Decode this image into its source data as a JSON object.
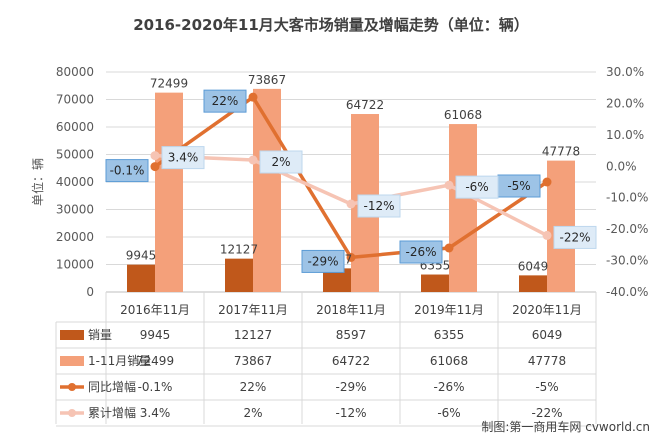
{
  "chart_data": {
    "type": "bar",
    "title": "2016-2020年11月大客市场销量及增幅走势（单位：辆）",
    "ylabel": "单位：辆",
    "ylim": [
      0,
      80000
    ],
    "y2lim": [
      -40,
      30
    ],
    "yticks": [
      "0",
      "10000",
      "20000",
      "30000",
      "40000",
      "50000",
      "60000",
      "70000",
      "80000"
    ],
    "y2ticks": [
      "-40.0%",
      "-30.0%",
      "-20.0%",
      "-10.0%",
      "0.0%",
      "10.0%",
      "20.0%",
      "30.0%"
    ],
    "categories": [
      "2016年11月",
      "2017年11月",
      "2018年11月",
      "2019年11月",
      "2020年11月"
    ],
    "series": [
      {
        "name": "销量",
        "type": "bar",
        "axis": "left",
        "color": "#C0581B",
        "values": [
          9945,
          12127,
          8597,
          6355,
          6049
        ],
        "labels": [
          "9945",
          "12127",
          "8597",
          "6355",
          "6049"
        ]
      },
      {
        "name": "1-11月销量",
        "type": "bar",
        "axis": "left",
        "color": "#F4A07A",
        "values": [
          72499,
          73867,
          64722,
          61068,
          47778
        ],
        "labels": [
          "72499",
          "73867",
          "64722",
          "61068",
          "47778"
        ]
      },
      {
        "name": "同比增幅",
        "type": "line",
        "axis": "right",
        "color": "#E07030",
        "values": [
          -0.1,
          22,
          -29,
          -26,
          -5
        ],
        "labels": [
          "-0.1%",
          "22%",
          "-29%",
          "-26%",
          "-5%"
        ]
      },
      {
        "name": "累计增幅",
        "type": "line",
        "axis": "right",
        "color": "#F6C4B4",
        "values": [
          3.4,
          2,
          -12,
          -6,
          -22
        ],
        "labels": [
          "3.4%",
          "2%",
          "-12%",
          "-6%",
          "-22%"
        ]
      }
    ],
    "watermark": "制图:第一商用车网 cvworld.cn"
  }
}
